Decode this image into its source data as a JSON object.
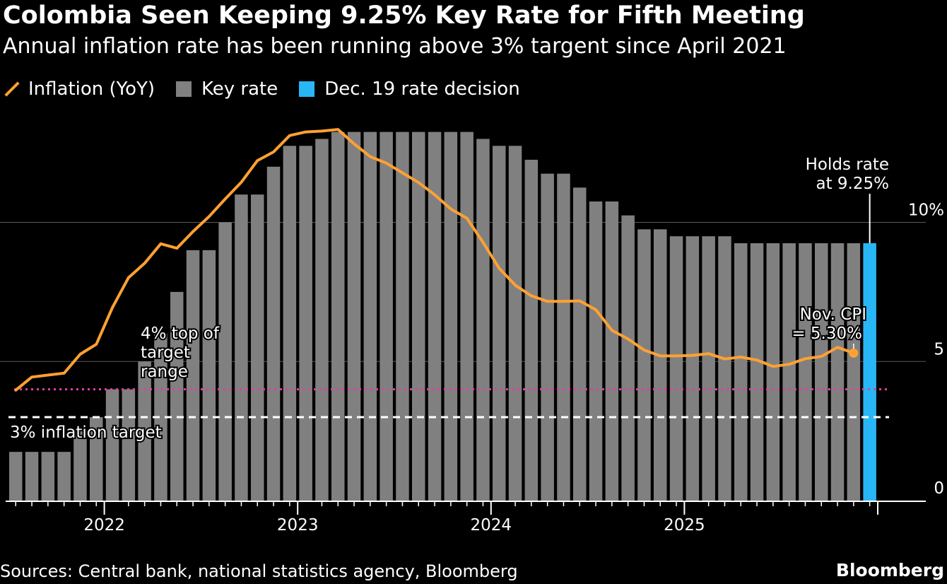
{
  "chart_data": {
    "type": "bar+line",
    "title": "Colombia Seen Keeping 9.25% Key Rate for Fifth Meeting",
    "subtitle": "Annual inflation rate has been running above 3% targent since April 2021",
    "legend": {
      "inflation": "Inflation (YoY)",
      "key_rate": "Key rate",
      "decision": "Dec. 19 rate decision"
    },
    "colors": {
      "inflation": "#ffa133",
      "key_rate": "#808080",
      "decision": "#29b6f6",
      "target_range": "#e040a0",
      "target": "#ffffff",
      "grid": "#5a5a5a"
    },
    "y_axis": {
      "ylim": [
        0,
        13.8
      ],
      "ticks": [
        0,
        5,
        10
      ],
      "tick_labels": [
        "0",
        "5",
        "10%"
      ]
    },
    "x_axis": {
      "tick_labels": [
        "2022",
        "2023",
        "2024",
        "2025"
      ],
      "first_month": "2021-07"
    },
    "key_rate_months": [
      "2021-07",
      "2021-08",
      "2021-09",
      "2021-10",
      "2021-11",
      "2021-12",
      "2022-01",
      "2022-02",
      "2022-03",
      "2022-04",
      "2022-05",
      "2022-06",
      "2022-07",
      "2022-08",
      "2022-09",
      "2022-10",
      "2022-11",
      "2022-12",
      "2023-01",
      "2023-02",
      "2023-03",
      "2023-04",
      "2023-05",
      "2023-06",
      "2023-07",
      "2023-08",
      "2023-09",
      "2023-10",
      "2023-11",
      "2023-12",
      "2024-01",
      "2024-02",
      "2024-03",
      "2024-04",
      "2024-05",
      "2024-06",
      "2024-07",
      "2024-08",
      "2024-09",
      "2024-10",
      "2024-11",
      "2024-12",
      "2025-01",
      "2025-02",
      "2025-03",
      "2025-04",
      "2025-05",
      "2025-06",
      "2025-07",
      "2025-08",
      "2025-09",
      "2025-10",
      "2025-11",
      "2025-12"
    ],
    "key_rate": [
      1.75,
      1.75,
      1.75,
      1.75,
      2.5,
      3.0,
      4.0,
      4.0,
      5.0,
      6.0,
      7.5,
      9.0,
      9.0,
      10.0,
      11.0,
      11.0,
      12.0,
      12.75,
      12.75,
      13.0,
      13.25,
      13.25,
      13.25,
      13.25,
      13.25,
      13.25,
      13.25,
      13.25,
      13.25,
      13.0,
      12.75,
      12.75,
      12.25,
      11.75,
      11.75,
      11.25,
      10.75,
      10.75,
      10.25,
      9.75,
      9.75,
      9.5,
      9.5,
      9.5,
      9.5,
      9.25,
      9.25,
      9.25,
      9.25,
      9.25,
      9.25,
      9.25,
      9.25,
      9.25
    ],
    "inflation_months": [
      "2021-07",
      "2021-08",
      "2021-09",
      "2021-10",
      "2021-11",
      "2021-12",
      "2022-01",
      "2022-02",
      "2022-03",
      "2022-04",
      "2022-05",
      "2022-06",
      "2022-07",
      "2022-08",
      "2022-09",
      "2022-10",
      "2022-11",
      "2022-12",
      "2023-01",
      "2023-02",
      "2023-03",
      "2023-04",
      "2023-05",
      "2023-06",
      "2023-07",
      "2023-08",
      "2023-09",
      "2023-10",
      "2023-11",
      "2023-12",
      "2024-01",
      "2024-02",
      "2024-03",
      "2024-04",
      "2024-05",
      "2024-06",
      "2024-07",
      "2024-08",
      "2024-09",
      "2024-10",
      "2024-11",
      "2024-12",
      "2025-01",
      "2025-02",
      "2025-03",
      "2025-04",
      "2025-05",
      "2025-06",
      "2025-07",
      "2025-08",
      "2025-09",
      "2025-10",
      "2025-11"
    ],
    "inflation": [
      3.97,
      4.44,
      4.51,
      4.58,
      5.26,
      5.62,
      6.94,
      8.01,
      8.53,
      9.23,
      9.07,
      9.67,
      10.21,
      10.84,
      11.44,
      12.22,
      12.53,
      13.12,
      13.25,
      13.28,
      13.34,
      12.82,
      12.36,
      12.13,
      11.78,
      11.43,
      10.99,
      10.48,
      10.15,
      9.28,
      8.35,
      7.74,
      7.36,
      7.16,
      7.16,
      7.18,
      6.86,
      6.12,
      5.81,
      5.41,
      5.2,
      5.2,
      5.22,
      5.28,
      5.09,
      5.16,
      5.05,
      4.82,
      4.9,
      5.1,
      5.18,
      5.51,
      5.3
    ],
    "decision_value": 9.25,
    "reference_lines": {
      "target_range_top": 4,
      "target": 3
    },
    "annotations": {
      "holds_line1": "Holds rate",
      "holds_line2": "at 9.25%",
      "cpi_line1": "Nov. CPI",
      "cpi_line2": "= 5.30%",
      "range_line1": "4% top of",
      "range_line2": "target",
      "range_line3": "range",
      "target_label": "3% inflation target"
    }
  },
  "footer": {
    "source": "Sources: Central bank, national statistics agency, Bloomberg",
    "brand": "Bloomberg"
  }
}
